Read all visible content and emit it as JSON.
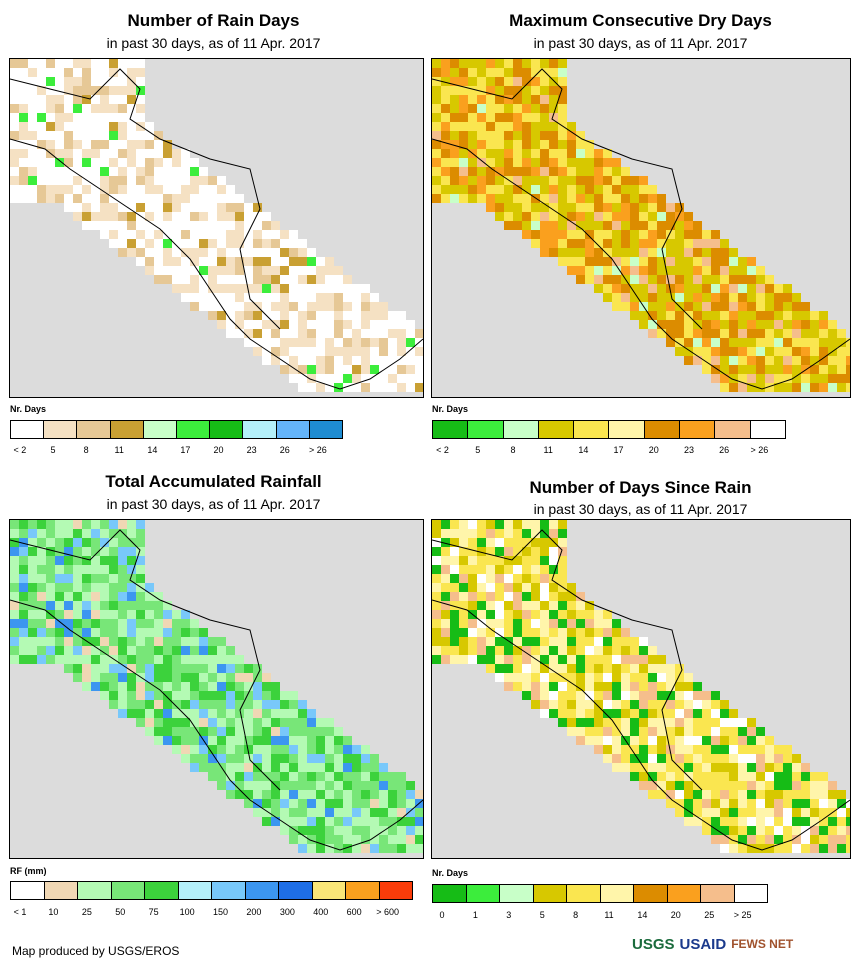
{
  "colors": {
    "rain_days": [
      "#ffffff",
      "#f5e1c3",
      "#e6c896",
      "#c9a033",
      "#c8ffc8",
      "#3ced3c",
      "#16bc16",
      "#b4f0fa",
      "#64b4fa",
      "#1e8cd2"
    ],
    "dry_days": [
      "#16bc16",
      "#3ced3c",
      "#c8ffc8",
      "#d7c800",
      "#fae650",
      "#fff5aa",
      "#dc8c00",
      "#faa01e",
      "#f5be8c",
      "#ffffff"
    ],
    "rainfall": [
      "#ffffff",
      "#f0d7b4",
      "#b4fab4",
      "#78e678",
      "#3cd23c",
      "#b4f0fa",
      "#78c8fa",
      "#3c96f0",
      "#1e6ee6",
      "#fae678",
      "#faa01e",
      "#fa3c0a"
    ],
    "days_since": [
      "#16bc16",
      "#3ced3c",
      "#c8ffc8",
      "#d7c800",
      "#fae650",
      "#fff5aa",
      "#dc8c00",
      "#faa01e",
      "#f5be8c",
      "#ffffff"
    ]
  },
  "panels": {
    "rain_days": {
      "title": "Number of Rain Days",
      "subtitle": "in past 30 days, as of 11 Apr. 2017",
      "legend_title": "Nr. Days",
      "ticks": [
        "< 2",
        "5",
        "8",
        "11",
        "14",
        "17",
        "20",
        "23",
        "26",
        "> 26"
      ]
    },
    "dry_days": {
      "title": "Maximum Consecutive Dry Days",
      "subtitle": "in past 30 days, as of 11 Apr. 2017",
      "legend_title": "Nr. Days",
      "ticks": [
        "< 2",
        "5",
        "8",
        "11",
        "14",
        "17",
        "20",
        "23",
        "26",
        "> 26"
      ]
    },
    "rainfall": {
      "title": "Total Accumulated Rainfall",
      "subtitle": "in past 30 days, as of 11 Apr. 2017",
      "legend_title": "RF (mm)",
      "ticks": [
        "< 1",
        "10",
        "25",
        "50",
        "75",
        "100",
        "150",
        "200",
        "300",
        "400",
        "600",
        "> 600"
      ]
    },
    "days_since": {
      "title": "Number of Days Since Rain",
      "subtitle": "in past 30 days, as of 11 Apr. 2017",
      "legend_title": "Nr. Days",
      "ticks": [
        "0",
        "1",
        "3",
        "5",
        "8",
        "11",
        "14",
        "20",
        "25",
        "> 25"
      ]
    }
  },
  "footer": {
    "credit": "Map produced by USGS/EROS",
    "logo_usgs": "USGS",
    "logo_usaid": "USAID",
    "logo_fews": "FEWS NET"
  }
}
